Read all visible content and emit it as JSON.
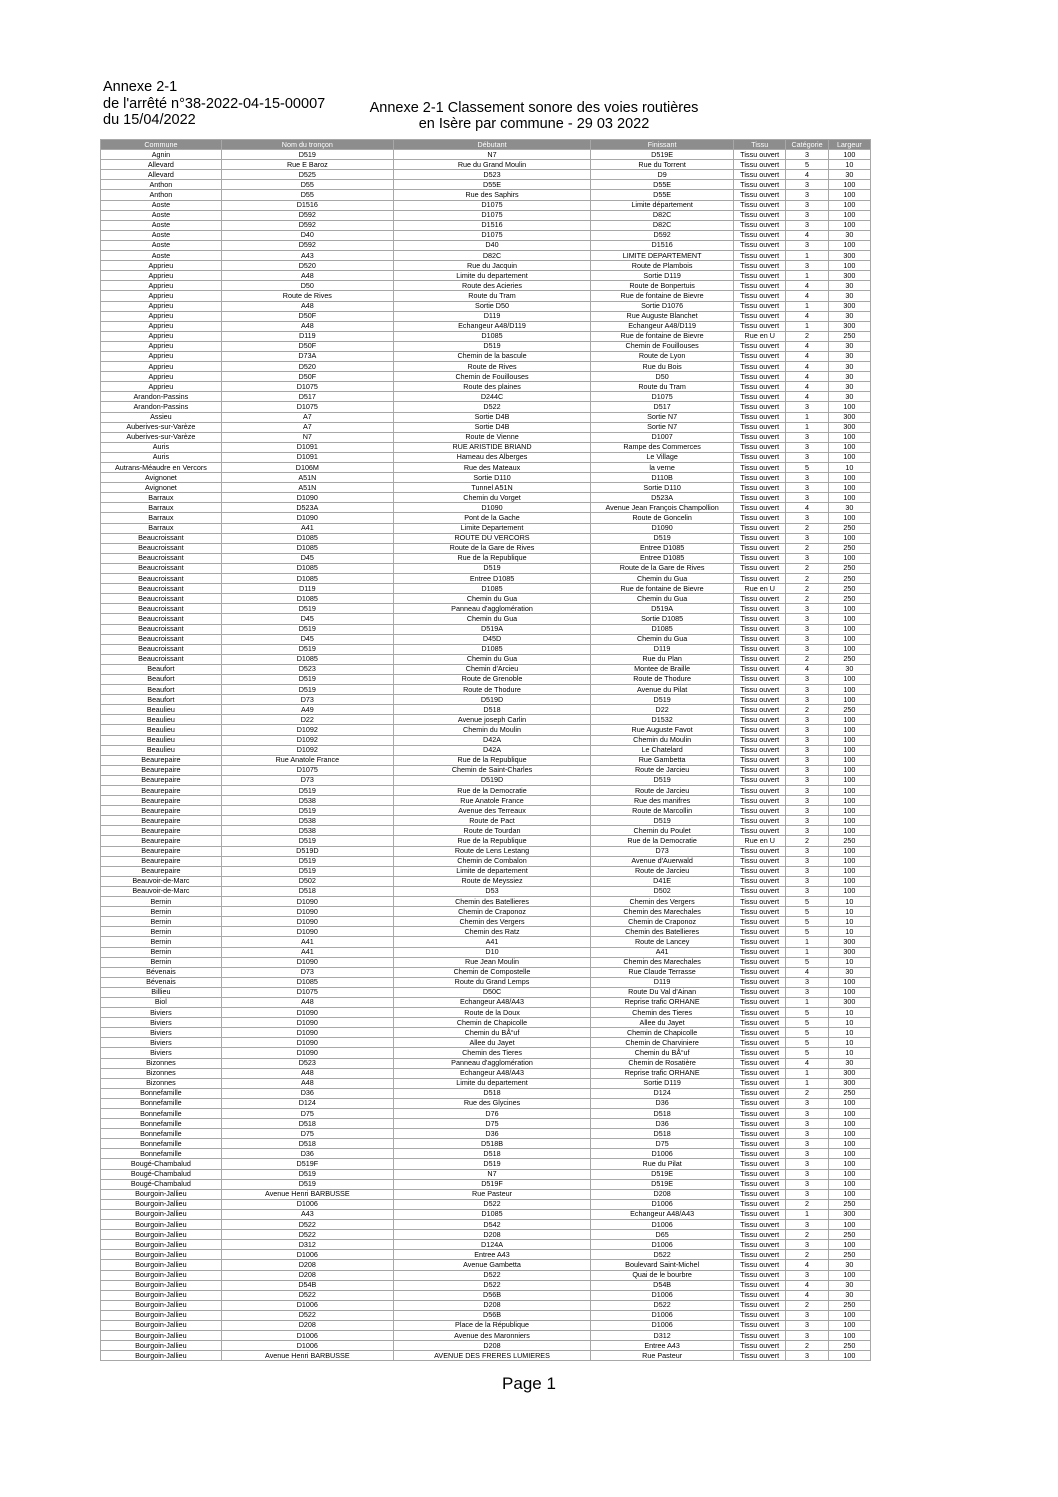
{
  "header": {
    "left_lines": [
      "Annexe 2-1",
      "de l'arrêté n°38-2022-04-15-00007",
      "du 15/04/2022"
    ],
    "title_lines": [
      "Annexe 2-1 Classement sonore des voies routières",
      "en Isère par commune - 29 03 2022"
    ]
  },
  "table": {
    "columns": [
      "Commune",
      "Nom du tronçon",
      "Débutant",
      "Finissant",
      "Tissu",
      "Catégorie",
      "Largeur"
    ],
    "rows": [
      [
        "Agnin",
        "D519",
        "N7",
        "D519E",
        "Tissu ouvert",
        "3",
        "100"
      ],
      [
        "Allevard",
        "Rue E Baroz",
        "Rue du Grand Moulin",
        "Rue du Torrent",
        "Tissu ouvert",
        "5",
        "10"
      ],
      [
        "Allevard",
        "D525",
        "D523",
        "D9",
        "Tissu ouvert",
        "4",
        "30"
      ],
      [
        "Anthon",
        "D55",
        "D55E",
        "D55E",
        "Tissu ouvert",
        "3",
        "100"
      ],
      [
        "Anthon",
        "D55",
        "Rue des Saphirs",
        "D55E",
        "Tissu ouvert",
        "3",
        "100"
      ],
      [
        "Aoste",
        "D1516",
        "D1075",
        "Limite département",
        "Tissu ouvert",
        "3",
        "100"
      ],
      [
        "Aoste",
        "D592",
        "D1075",
        "D82C",
        "Tissu ouvert",
        "3",
        "100"
      ],
      [
        "Aoste",
        "D592",
        "D1516",
        "D82C",
        "Tissu ouvert",
        "3",
        "100"
      ],
      [
        "Aoste",
        "D40",
        "D1075",
        "D592",
        "Tissu ouvert",
        "4",
        "30"
      ],
      [
        "Aoste",
        "D592",
        "D40",
        "D1516",
        "Tissu ouvert",
        "3",
        "100"
      ],
      [
        "Aoste",
        "A43",
        "D82C",
        "LIMITE DEPARTEMENT",
        "Tissu ouvert",
        "1",
        "300"
      ],
      [
        "Apprieu",
        "D520",
        "Rue du Jacquin",
        "Route de Plambois",
        "Tissu ouvert",
        "3",
        "100"
      ],
      [
        "Apprieu",
        "A48",
        "Limite du departement",
        "Sortie D119",
        "Tissu ouvert",
        "1",
        "300"
      ],
      [
        "Apprieu",
        "D50",
        "Route des Acieries",
        "Route de Bonpertuis",
        "Tissu ouvert",
        "4",
        "30"
      ],
      [
        "Apprieu",
        "Route de Rives",
        "Route du Tram",
        "Rue de fontaine de Bievre",
        "Tissu ouvert",
        "4",
        "30"
      ],
      [
        "Apprieu",
        "A48",
        "Sortie D50",
        "Sortie D1076",
        "Tissu ouvert",
        "1",
        "300"
      ],
      [
        "Apprieu",
        "D50F",
        "D119",
        "Rue Auguste Blanchet",
        "Tissu ouvert",
        "4",
        "30"
      ],
      [
        "Apprieu",
        "A48",
        "Echangeur A48/D119",
        "Echangeur A48/D119",
        "Tissu ouvert",
        "1",
        "300"
      ],
      [
        "Apprieu",
        "D119",
        "D1085",
        "Rue de fontaine de Bievre",
        "Rue en U",
        "2",
        "250"
      ],
      [
        "Apprieu",
        "D50F",
        "D519",
        "Chemin de Fouillouses",
        "Tissu ouvert",
        "4",
        "30"
      ],
      [
        "Apprieu",
        "D73A",
        "Chemin de la bascule",
        "Route de Lyon",
        "Tissu ouvert",
        "4",
        "30"
      ],
      [
        "Apprieu",
        "D520",
        "Route de Rives",
        "Rue du Bois",
        "Tissu ouvert",
        "4",
        "30"
      ],
      [
        "Apprieu",
        "D50F",
        "Chemin de Fouillouses",
        "D50",
        "Tissu ouvert",
        "4",
        "30"
      ],
      [
        "Apprieu",
        "D1075",
        "Route des plaines",
        "Route du Tram",
        "Tissu ouvert",
        "4",
        "30"
      ],
      [
        "Arandon-Passins",
        "D517",
        "D244C",
        "D1075",
        "Tissu ouvert",
        "4",
        "30"
      ],
      [
        "Arandon-Passins",
        "D1075",
        "D522",
        "D517",
        "Tissu ouvert",
        "3",
        "100"
      ],
      [
        "Assieu",
        "A7",
        "Sortie D4B",
        "Sortie N7",
        "Tissu ouvert",
        "1",
        "300"
      ],
      [
        "Auberives-sur-Varèze",
        "A7",
        "Sortie D4B",
        "Sortie N7",
        "Tissu ouvert",
        "1",
        "300"
      ],
      [
        "Auberives-sur-Varèze",
        "N7",
        "Route de Vienne",
        "D1007",
        "Tissu ouvert",
        "3",
        "100"
      ],
      [
        "Auris",
        "D1091",
        "RUE ARISTIDE BRIAND",
        "Rampe des Commerces",
        "Tissu ouvert",
        "3",
        "100"
      ],
      [
        "Auris",
        "D1091",
        "Hameau des Alberges",
        "Le Village",
        "Tissu ouvert",
        "3",
        "100"
      ],
      [
        "Autrans-Méaudre en Vercors",
        "D106M",
        "Rue des Mateaux",
        "la verne",
        "Tissu ouvert",
        "5",
        "10"
      ],
      [
        "Avignonet",
        "A51N",
        "Sortie D110",
        "D110B",
        "Tissu ouvert",
        "3",
        "100"
      ],
      [
        "Avignonet",
        "A51N",
        "Tunnel A51N",
        "Sortie D110",
        "Tissu ouvert",
        "3",
        "100"
      ],
      [
        "Barraux",
        "D1090",
        "Chemin du Vorget",
        "D523A",
        "Tissu ouvert",
        "3",
        "100"
      ],
      [
        "Barraux",
        "D523A",
        "D1090",
        "Avenue Jean François Champollion",
        "Tissu ouvert",
        "4",
        "30"
      ],
      [
        "Barraux",
        "D1090",
        "Pont de la Gache",
        "Route de Goncelin",
        "Tissu ouvert",
        "3",
        "100"
      ],
      [
        "Barraux",
        "A41",
        "Limite Departement",
        "D1090",
        "Tissu ouvert",
        "2",
        "250"
      ],
      [
        "Beaucroissant",
        "D1085",
        "ROUTE DU VERCORS",
        "D519",
        "Tissu ouvert",
        "3",
        "100"
      ],
      [
        "Beaucroissant",
        "D1085",
        "Route de la Gare de Rives",
        "Entree D1085",
        "Tissu ouvert",
        "2",
        "250"
      ],
      [
        "Beaucroissant",
        "D45",
        "Rue de la Republique",
        "Entree D1085",
        "Tissu ouvert",
        "3",
        "100"
      ],
      [
        "Beaucroissant",
        "D1085",
        "D519",
        "Route de la Gare de Rives",
        "Tissu ouvert",
        "2",
        "250"
      ],
      [
        "Beaucroissant",
        "D1085",
        "Entree D1085",
        "Chemin du Gua",
        "Tissu ouvert",
        "2",
        "250"
      ],
      [
        "Beaucroissant",
        "D119",
        "D1085",
        "Rue de fontaine de Bievre",
        "Rue en U",
        "2",
        "250"
      ],
      [
        "Beaucroissant",
        "D1085",
        "Chemin du Gua",
        "Chemin du Gua",
        "Tissu ouvert",
        "2",
        "250"
      ],
      [
        "Beaucroissant",
        "D519",
        "Panneau d'agglomération",
        "D519A",
        "Tissu ouvert",
        "3",
        "100"
      ],
      [
        "Beaucroissant",
        "D45",
        "Chemin du Gua",
        "Sortie D1085",
        "Tissu ouvert",
        "3",
        "100"
      ],
      [
        "Beaucroissant",
        "D519",
        "D519A",
        "D1085",
        "Tissu ouvert",
        "3",
        "100"
      ],
      [
        "Beaucroissant",
        "D45",
        "D45D",
        "Chemin du Gua",
        "Tissu ouvert",
        "3",
        "100"
      ],
      [
        "Beaucroissant",
        "D519",
        "D1085",
        "D119",
        "Tissu ouvert",
        "3",
        "100"
      ],
      [
        "Beaucroissant",
        "D1085",
        "Chemin du Gua",
        "Rue du Plan",
        "Tissu ouvert",
        "2",
        "250"
      ],
      [
        "Beaufort",
        "D523",
        "Chemin d'Arcieu",
        "Montee de Braille",
        "Tissu ouvert",
        "4",
        "30"
      ],
      [
        "Beaufort",
        "D519",
        "Route de Grenoble",
        "Route de Thodure",
        "Tissu ouvert",
        "3",
        "100"
      ],
      [
        "Beaufort",
        "D519",
        "Route de Thodure",
        "Avenue du Pilat",
        "Tissu ouvert",
        "3",
        "100"
      ],
      [
        "Beaufort",
        "D73",
        "D519D",
        "D519",
        "Tissu ouvert",
        "3",
        "100"
      ],
      [
        "Beaulieu",
        "A49",
        "D518",
        "D22",
        "Tissu ouvert",
        "2",
        "250"
      ],
      [
        "Beaulieu",
        "D22",
        "Avenue joseph Carlin",
        "D1532",
        "Tissu ouvert",
        "3",
        "100"
      ],
      [
        "Beaulieu",
        "D1092",
        "Chemin du Moulin",
        "Rue Auguste Favot",
        "Tissu ouvert",
        "3",
        "100"
      ],
      [
        "Beaulieu",
        "D1092",
        "D42A",
        "Chemin du Moulin",
        "Tissu ouvert",
        "3",
        "100"
      ],
      [
        "Beaulieu",
        "D1092",
        "D42A",
        "Le Chatelard",
        "Tissu ouvert",
        "3",
        "100"
      ],
      [
        "Beaurepaire",
        "Rue Anatole France",
        "Rue de la Republique",
        "Rue Gambetta",
        "Tissu ouvert",
        "3",
        "100"
      ],
      [
        "Beaurepaire",
        "D1075",
        "Chemin de Saint-Charles",
        "Route de Jarcieu",
        "Tissu ouvert",
        "3",
        "100"
      ],
      [
        "Beaurepaire",
        "D73",
        "D519D",
        "D519",
        "Tissu ouvert",
        "3",
        "100"
      ],
      [
        "Beaurepaire",
        "D519",
        "Rue de la Democratie",
        "Route de Jarcieu",
        "Tissu ouvert",
        "3",
        "100"
      ],
      [
        "Beaurepaire",
        "D538",
        "Rue Anatole France",
        "Rue des manifres",
        "Tissu ouvert",
        "3",
        "100"
      ],
      [
        "Beaurepaire",
        "D519",
        "Avenue des Terreaux",
        "Route de Marcollin",
        "Tissu ouvert",
        "3",
        "100"
      ],
      [
        "Beaurepaire",
        "D538",
        "Route de Pact",
        "D519",
        "Tissu ouvert",
        "3",
        "100"
      ],
      [
        "Beaurepaire",
        "D538",
        "Route de Tourdan",
        "Chemin du Poulet",
        "Tissu ouvert",
        "3",
        "100"
      ],
      [
        "Beaurepaire",
        "D519",
        "Rue de la Republique",
        "Rue de la Democratie",
        "Rue en U",
        "2",
        "250"
      ],
      [
        "Beaurepaire",
        "D519D",
        "Route de Lens Lestang",
        "D73",
        "Tissu ouvert",
        "3",
        "100"
      ],
      [
        "Beaurepaire",
        "D519",
        "Chemin de Combalon",
        "Avenue d'Auerwald",
        "Tissu ouvert",
        "3",
        "100"
      ],
      [
        "Beaurepaire",
        "D519",
        "Limite de departement",
        "Route de Jarcieu",
        "Tissu ouvert",
        "3",
        "100"
      ],
      [
        "Beauvoir-de-Marc",
        "D502",
        "Route de Meyssiez",
        "D41E",
        "Tissu ouvert",
        "3",
        "100"
      ],
      [
        "Beauvoir-de-Marc",
        "D518",
        "D53",
        "D502",
        "Tissu ouvert",
        "3",
        "100"
      ],
      [
        "Bernin",
        "D1090",
        "Chemin des Batellieres",
        "Chemin des Vergers",
        "Tissu ouvert",
        "5",
        "10"
      ],
      [
        "Bernin",
        "D1090",
        "Chemin de Craponoz",
        "Chemin des Marechales",
        "Tissu ouvert",
        "5",
        "10"
      ],
      [
        "Bernin",
        "D1090",
        "Chemin des Vergers",
        "Chemin de Craponoz",
        "Tissu ouvert",
        "5",
        "10"
      ],
      [
        "Bernin",
        "D1090",
        "Chemin des Ratz",
        "Chemin des Batellieres",
        "Tissu ouvert",
        "5",
        "10"
      ],
      [
        "Bernin",
        "A41",
        "A41",
        "Route de Lancey",
        "Tissu ouvert",
        "1",
        "300"
      ],
      [
        "Bernin",
        "A41",
        "D10",
        "A41",
        "Tissu ouvert",
        "1",
        "300"
      ],
      [
        "Bernin",
        "D1090",
        "Rue Jean Moulin",
        "Chemin des Marechales",
        "Tissu ouvert",
        "5",
        "10"
      ],
      [
        "Bévenais",
        "D73",
        "Chemin de Compostelle",
        "Rue Claude Terrasse",
        "Tissu ouvert",
        "4",
        "30"
      ],
      [
        "Bévenais",
        "D1085",
        "Route du Grand Lemps",
        "D119",
        "Tissu ouvert",
        "3",
        "100"
      ],
      [
        "Billieu",
        "D1075",
        "D50C",
        "Route Du Val d'Ainan",
        "Tissu ouvert",
        "3",
        "100"
      ],
      [
        "Biol",
        "A48",
        "Echangeur A48/A43",
        "Reprise trafic ORHANE",
        "Tissu ouvert",
        "1",
        "300"
      ],
      [
        "Biviers",
        "D1090",
        "Route de la Doux",
        "Chemin des Tieres",
        "Tissu ouvert",
        "5",
        "10"
      ],
      [
        "Biviers",
        "D1090",
        "Chemin de Chapicolle",
        "Allee du Jayet",
        "Tissu ouvert",
        "5",
        "10"
      ],
      [
        "Biviers",
        "D1090",
        "Chemin du BÅ“uf",
        "Chemin de Chapicolle",
        "Tissu ouvert",
        "5",
        "10"
      ],
      [
        "Biviers",
        "D1090",
        "Allee du Jayet",
        "Chemin de Charviniere",
        "Tissu ouvert",
        "5",
        "10"
      ],
      [
        "Biviers",
        "D1090",
        "Chemin des Tieres",
        "Chemin du BÅ“uf",
        "Tissu ouvert",
        "5",
        "10"
      ],
      [
        "Bizonnes",
        "D523",
        "Panneau d'agglomération",
        "Chemin de Rosatière",
        "Tissu ouvert",
        "4",
        "30"
      ],
      [
        "Bizonnes",
        "A48",
        "Echangeur A48/A43",
        "Reprise trafic ORHANE",
        "Tissu ouvert",
        "1",
        "300"
      ],
      [
        "Bizonnes",
        "A48",
        "Limite du departement",
        "Sortie D119",
        "Tissu ouvert",
        "1",
        "300"
      ],
      [
        "Bonnefamille",
        "D36",
        "D518",
        "D124",
        "Tissu ouvert",
        "2",
        "250"
      ],
      [
        "Bonnefamille",
        "D124",
        "Rue des Glycines",
        "D36",
        "Tissu ouvert",
        "3",
        "100"
      ],
      [
        "Bonnefamille",
        "D75",
        "D76",
        "D518",
        "Tissu ouvert",
        "3",
        "100"
      ],
      [
        "Bonnefamille",
        "D518",
        "D75",
        "D36",
        "Tissu ouvert",
        "3",
        "100"
      ],
      [
        "Bonnefamille",
        "D75",
        "D36",
        "D518",
        "Tissu ouvert",
        "3",
        "100"
      ],
      [
        "Bonnefamille",
        "D518",
        "D518B",
        "D75",
        "Tissu ouvert",
        "3",
        "100"
      ],
      [
        "Bonnefamille",
        "D36",
        "D518",
        "D1006",
        "Tissu ouvert",
        "3",
        "100"
      ],
      [
        "Bougé-Chambalud",
        "D519F",
        "D519",
        "Rue du Pilat",
        "Tissu ouvert",
        "3",
        "100"
      ],
      [
        "Bougé-Chambalud",
        "D519",
        "N7",
        "D519E",
        "Tissu ouvert",
        "3",
        "100"
      ],
      [
        "Bougé-Chambalud",
        "D519",
        "D519F",
        "D519E",
        "Tissu ouvert",
        "3",
        "100"
      ],
      [
        "Bourgoin-Jallieu",
        "Avenue Henri BARBUSSE",
        "Rue Pasteur",
        "D208",
        "Tissu ouvert",
        "3",
        "100"
      ],
      [
        "Bourgoin-Jallieu",
        "D1006",
        "D522",
        "D1006",
        "Tissu ouvert",
        "2",
        "250"
      ],
      [
        "Bourgoin-Jallieu",
        "A43",
        "D1085",
        "Echangeur A48/A43",
        "Tissu ouvert",
        "1",
        "300"
      ],
      [
        "Bourgoin-Jallieu",
        "D522",
        "D542",
        "D1006",
        "Tissu ouvert",
        "3",
        "100"
      ],
      [
        "Bourgoin-Jallieu",
        "D522",
        "D208",
        "D65",
        "Tissu ouvert",
        "2",
        "250"
      ],
      [
        "Bourgoin-Jallieu",
        "D312",
        "D124A",
        "D1006",
        "Tissu ouvert",
        "3",
        "100"
      ],
      [
        "Bourgoin-Jallieu",
        "D1006",
        "Entree A43",
        "D522",
        "Tissu ouvert",
        "2",
        "250"
      ],
      [
        "Bourgoin-Jallieu",
        "D208",
        "Avenue Gambetta",
        "Boulevard Saint-Michel",
        "Tissu ouvert",
        "4",
        "30"
      ],
      [
        "Bourgoin-Jallieu",
        "D208",
        "D522",
        "Quai de le bourbre",
        "Tissu ouvert",
        "3",
        "100"
      ],
      [
        "Bourgoin-Jallieu",
        "D54B",
        "D522",
        "D54B",
        "Tissu ouvert",
        "4",
        "30"
      ],
      [
        "Bourgoin-Jallieu",
        "D522",
        "D56B",
        "D1006",
        "Tissu ouvert",
        "4",
        "30"
      ],
      [
        "Bourgoin-Jallieu",
        "D1006",
        "D208",
        "D522",
        "Tissu ouvert",
        "2",
        "250"
      ],
      [
        "Bourgoin-Jallieu",
        "D522",
        "D56B",
        "D1006",
        "Tissu ouvert",
        "3",
        "100"
      ],
      [
        "Bourgoin-Jallieu",
        "D208",
        "Place de la République",
        "D1006",
        "Tissu ouvert",
        "3",
        "100"
      ],
      [
        "Bourgoin-Jallieu",
        "D1006",
        "Avenue des Maronniers",
        "D312",
        "Tissu ouvert",
        "3",
        "100"
      ],
      [
        "Bourgoin-Jallieu",
        "D1006",
        "D208",
        "Entree A43",
        "Tissu ouvert",
        "2",
        "250"
      ],
      [
        "Bourgoin-Jallieu",
        "Avenue Henri BARBUSSE",
        "AVENUE DES FRERES LUMIERES",
        "Rue Pasteur",
        "Tissu ouvert",
        "3",
        "100"
      ]
    ]
  },
  "footer": {
    "page_label": "Page 1"
  }
}
